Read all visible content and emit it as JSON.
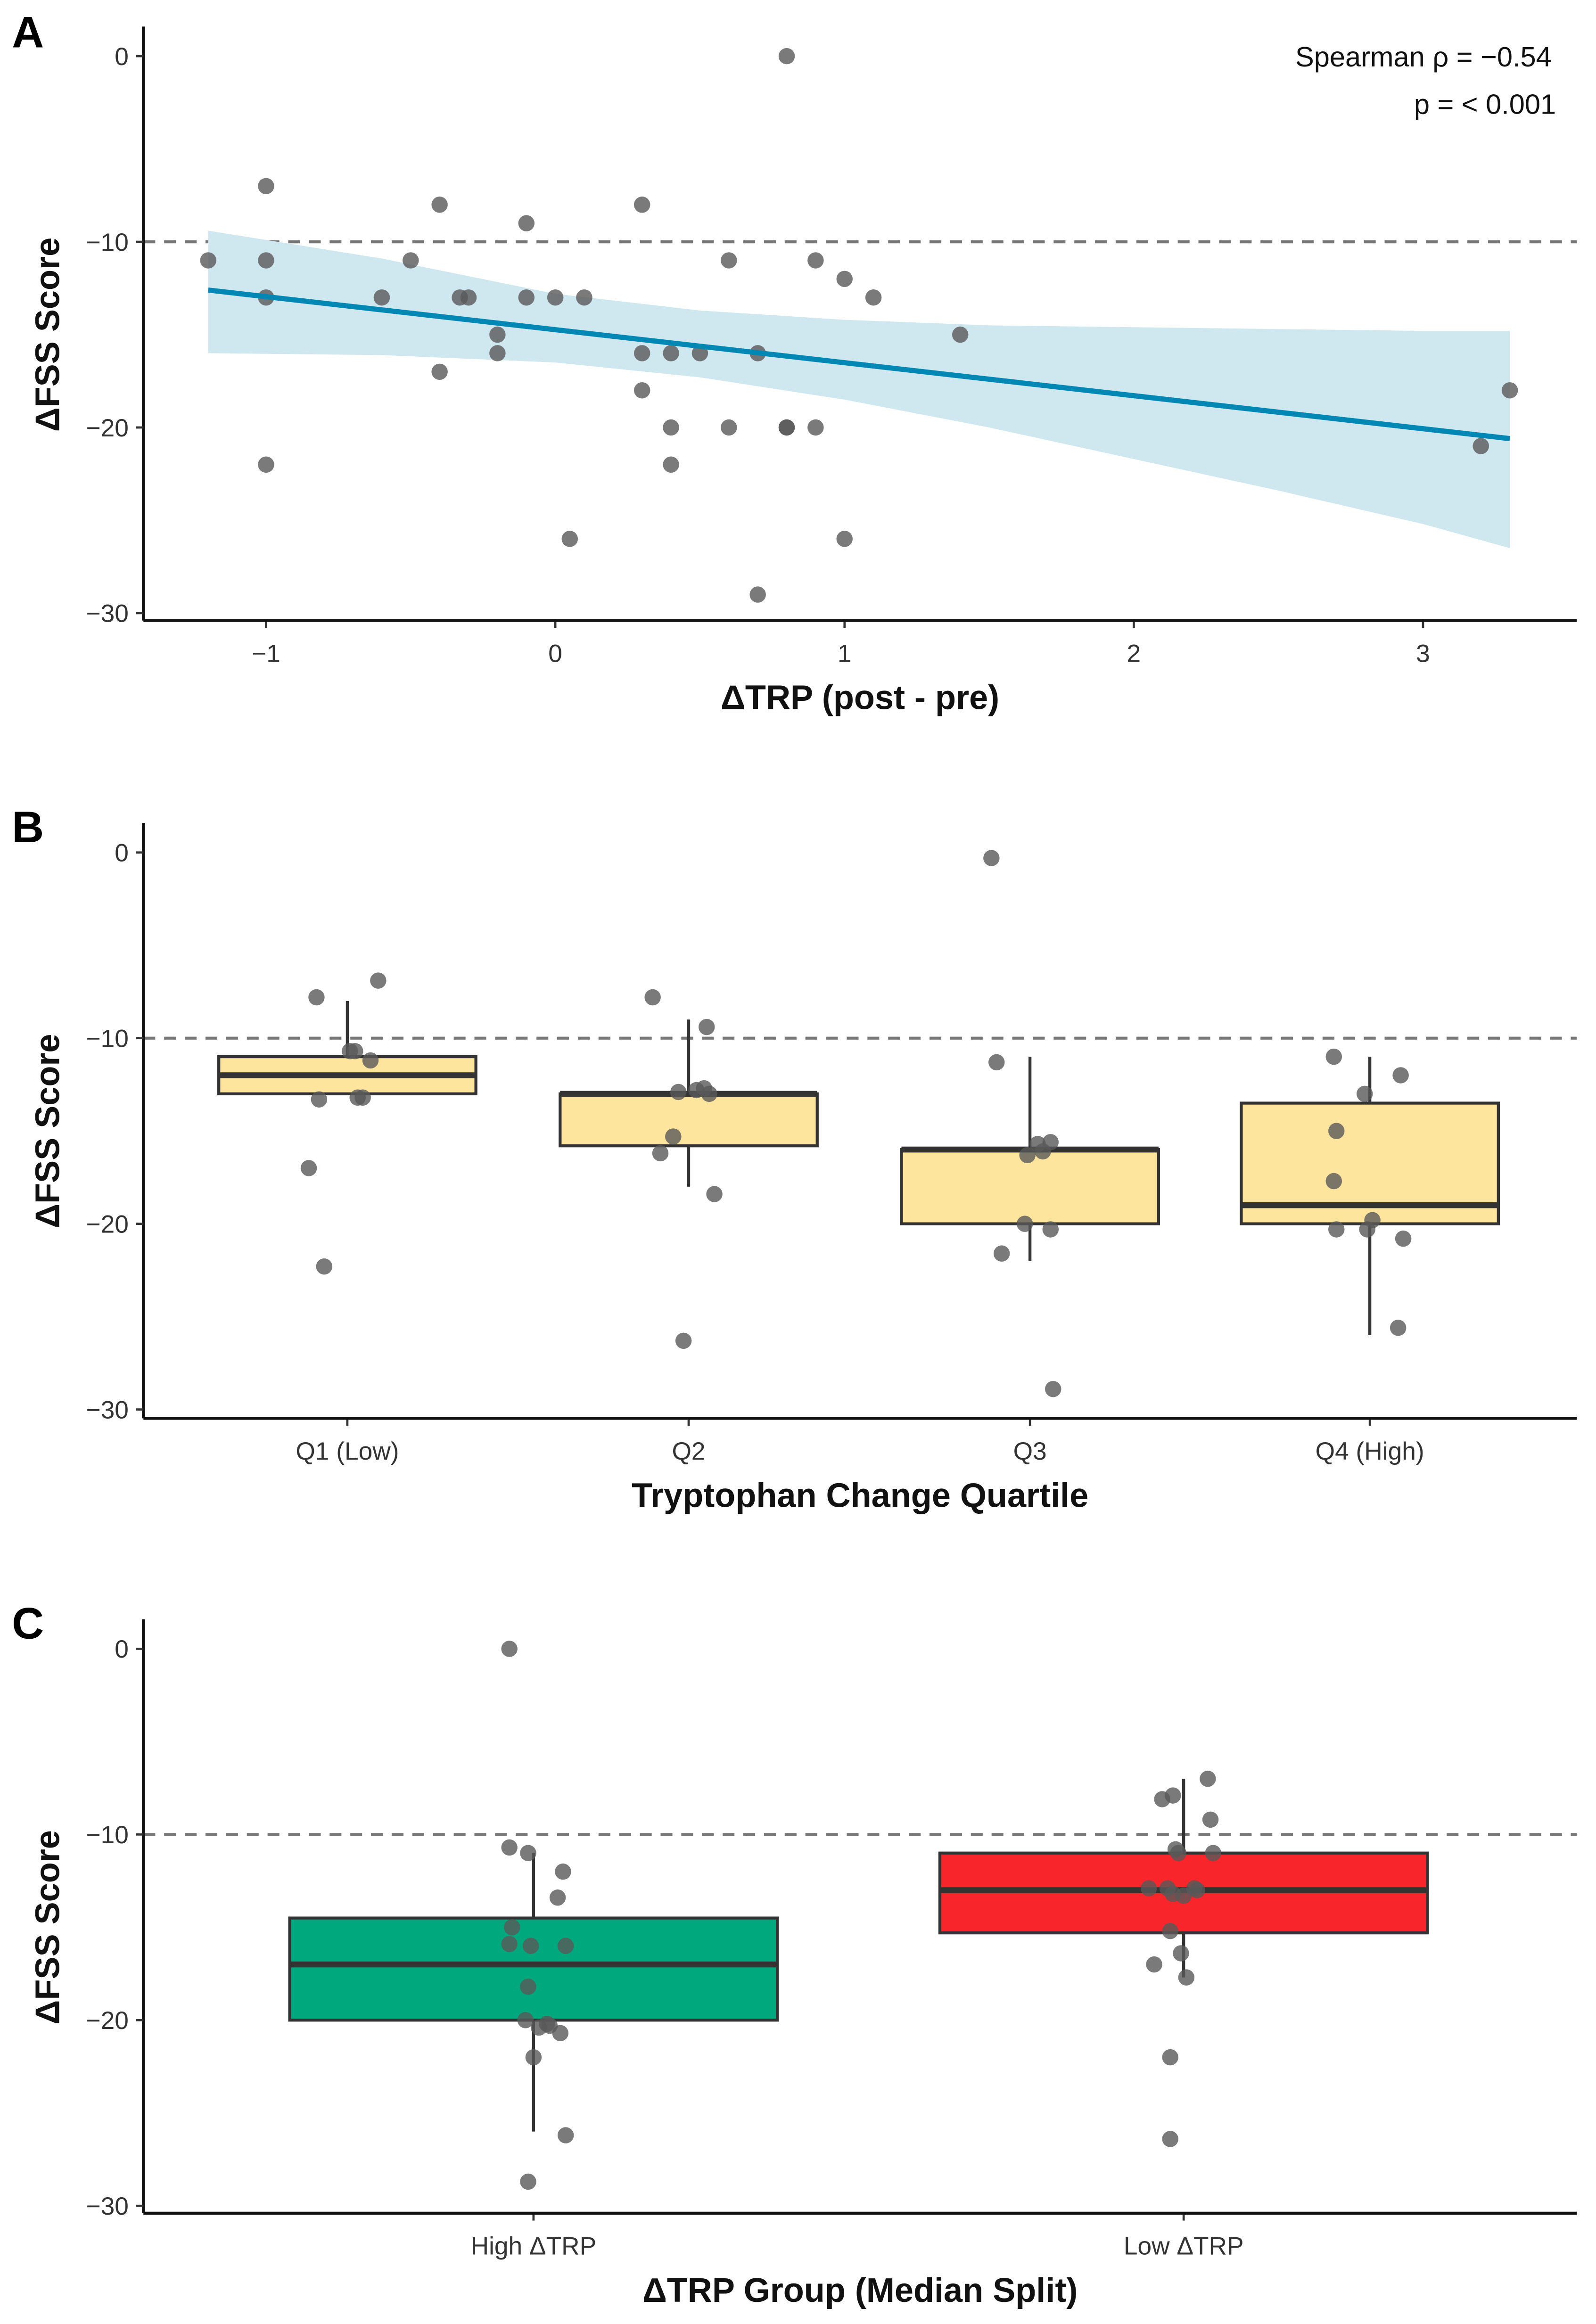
{
  "chart_data": [
    {
      "panel": "A",
      "type": "scatter",
      "xlabel": "ΔTRP (post - pre)",
      "ylabel": "ΔFSS Score",
      "xlim": [
        -1.45,
        3.5
      ],
      "ylim": [
        -30.5,
        1.5
      ],
      "xticks": [
        -1,
        0,
        1,
        2,
        3
      ],
      "xtick_labels": [
        "−1",
        "0",
        "1",
        "2",
        "3"
      ],
      "yticks": [
        0,
        -10,
        -20,
        -30
      ],
      "ytick_labels": [
        "0",
        "−10",
        "−20",
        "−30"
      ],
      "reference_line": -10,
      "annotations": [
        "Spearman ρ = −0.54",
        "p = < 0.001"
      ],
      "points": [
        [
          -1.2,
          -11
        ],
        [
          -1,
          -7
        ],
        [
          -1,
          -11
        ],
        [
          -1,
          -13
        ],
        [
          -1,
          -22
        ],
        [
          -0.6,
          -13
        ],
        [
          -0.5,
          -11
        ],
        [
          -0.4,
          -8
        ],
        [
          -0.4,
          -17
        ],
        [
          -0.33,
          -13
        ],
        [
          -0.3,
          -13
        ],
        [
          -0.2,
          -15
        ],
        [
          -0.2,
          -16
        ],
        [
          -0.1,
          -9
        ],
        [
          -0.1,
          -13
        ],
        [
          0,
          -13
        ],
        [
          0.05,
          -26
        ],
        [
          0.1,
          -13
        ],
        [
          0.3,
          -8
        ],
        [
          0.3,
          -16
        ],
        [
          0.3,
          -18
        ],
        [
          0.4,
          -16
        ],
        [
          0.4,
          -20
        ],
        [
          0.4,
          -22
        ],
        [
          0.5,
          -16
        ],
        [
          0.6,
          -11
        ],
        [
          0.6,
          -20
        ],
        [
          0.7,
          -16
        ],
        [
          0.7,
          -29
        ],
        [
          0.8,
          0
        ],
        [
          0.8,
          -20
        ],
        [
          0.8,
          -20
        ],
        [
          0.9,
          -11
        ],
        [
          0.9,
          -20
        ],
        [
          1,
          -12
        ],
        [
          1,
          -26
        ],
        [
          1.1,
          -13
        ],
        [
          1.4,
          -15
        ],
        [
          3.2,
          -21
        ],
        [
          3.3,
          -18
        ]
      ],
      "fit": {
        "x": [
          -1.2,
          3.3
        ],
        "y": [
          -12.6,
          -20.6
        ]
      },
      "ci": {
        "x": [
          -1.2,
          -0.6,
          0,
          0.5,
          1,
          1.5,
          2,
          2.5,
          3,
          3.3
        ],
        "lower": [
          -16,
          -16.1,
          -16.5,
          -17.3,
          -18.5,
          -20,
          -21.7,
          -23.4,
          -25.2,
          -26.5
        ],
        "upper": [
          -9.4,
          -10.9,
          -12.8,
          -13.7,
          -14.2,
          -14.5,
          -14.6,
          -14.7,
          -14.8,
          -14.8
        ]
      },
      "colors": {
        "line": "#0087b3",
        "ribbon": "#cfe7ee",
        "point": "#595959"
      }
    },
    {
      "panel": "B",
      "type": "box",
      "xlabel": "Tryptophan Change Quartile",
      "ylabel": "ΔFSS Score",
      "ylim": [
        -30.5,
        1.5
      ],
      "yticks": [
        0,
        -10,
        -20,
        -30
      ],
      "ytick_labels": [
        "0",
        "−10",
        "−20",
        "−30"
      ],
      "reference_line": -10,
      "categories": [
        "Q1 (Low)",
        "Q2",
        "Q3",
        "Q4 (High)"
      ],
      "box_color": "#fde59e",
      "boxes": [
        {
          "q1": -13,
          "median": -12,
          "q3": -11,
          "lo": -13,
          "hi": -8
        },
        {
          "q1": -15.8,
          "median": -13,
          "q3": -13,
          "lo": -18,
          "hi": -9
        },
        {
          "q1": -20,
          "median": -16,
          "q3": -16,
          "lo": -22,
          "hi": -11
        },
        {
          "q1": -20,
          "median": -19,
          "q3": -13.5,
          "lo": -26,
          "hi": -11
        }
      ],
      "points": [
        [
          [
            -0.12,
            -7.8
          ],
          [
            0.12,
            -6.9
          ],
          [
            0.01,
            -10.7
          ],
          [
            0.03,
            -10.7
          ],
          [
            0.09,
            -11.2
          ],
          [
            -0.11,
            -13.3
          ],
          [
            0.04,
            -13.2
          ],
          [
            0.06,
            -13.2
          ],
          [
            -0.15,
            -17
          ],
          [
            -0.09,
            -22.3
          ]
        ],
        [
          [
            -0.14,
            -7.8
          ],
          [
            0.07,
            -9.4
          ],
          [
            -0.04,
            -12.9
          ],
          [
            0.03,
            -12.8
          ],
          [
            0.06,
            -12.7
          ],
          [
            0.08,
            -13
          ],
          [
            -0.06,
            -15.3
          ],
          [
            -0.11,
            -16.2
          ],
          [
            0.1,
            -18.4
          ],
          [
            -0.02,
            -26.3
          ]
        ],
        [
          [
            -0.15,
            -0.3
          ],
          [
            -0.13,
            -11.3
          ],
          [
            0.03,
            -15.7
          ],
          [
            0.08,
            -15.6
          ],
          [
            -0.01,
            -16.3
          ],
          [
            0.05,
            -16.1
          ],
          [
            -0.02,
            -20
          ],
          [
            0.08,
            -20.3
          ],
          [
            -0.11,
            -21.6
          ],
          [
            0.09,
            -28.9
          ]
        ],
        [
          [
            -0.14,
            -11
          ],
          [
            0.12,
            -12
          ],
          [
            -0.02,
            -13
          ],
          [
            -0.13,
            -15
          ],
          [
            -0.14,
            -17.7
          ],
          [
            -0.13,
            -20.3
          ],
          [
            0.01,
            -19.8
          ],
          [
            -0.01,
            -20.3
          ],
          [
            0.13,
            -20.8
          ],
          [
            0.11,
            -25.6
          ]
        ]
      ],
      "point_color": "#595959"
    },
    {
      "panel": "C",
      "type": "box",
      "xlabel": "ΔTRP Group (Median Split)",
      "ylabel": "ΔFSS Score",
      "ylim": [
        -30.5,
        1.5
      ],
      "yticks": [
        0,
        -10,
        -20,
        -30
      ],
      "ytick_labels": [
        "0",
        "−10",
        "−20",
        "−30"
      ],
      "reference_line": -10,
      "categories": [
        "High ΔTRP",
        "Low ΔTRP"
      ],
      "box_colors": [
        "#00a87e",
        "#f8262a"
      ],
      "boxes": [
        {
          "q1": -20,
          "median": -17,
          "q3": -14.5,
          "lo": -26,
          "hi": -11
        },
        {
          "q1": -15.3,
          "median": -13,
          "q3": -11,
          "lo": -17.7,
          "hi": -7
        }
      ],
      "points": [
        [
          [
            -0.09,
            0
          ],
          [
            -0.09,
            -10.7
          ],
          [
            -0.02,
            -11
          ],
          [
            0.11,
            -12
          ],
          [
            0.09,
            -13.4
          ],
          [
            -0.08,
            -15
          ],
          [
            -0.09,
            -15.9
          ],
          [
            -0.01,
            -16
          ],
          [
            0.12,
            -16
          ],
          [
            -0.02,
            -18.2
          ],
          [
            -0.03,
            -20
          ],
          [
            0.05,
            -20.2
          ],
          [
            0.02,
            -20.4
          ],
          [
            0.06,
            -20.3
          ],
          [
            0.1,
            -20.7
          ],
          [
            0.0,
            -22
          ],
          [
            0.12,
            -26.2
          ],
          [
            -0.02,
            -28.7
          ]
        ],
        [
          [
            0.09,
            -7
          ],
          [
            -0.04,
            -7.9
          ],
          [
            -0.08,
            -8.1
          ],
          [
            0.1,
            -9.2
          ],
          [
            -0.03,
            -10.8
          ],
          [
            -0.02,
            -11
          ],
          [
            0.11,
            -11
          ],
          [
            -0.13,
            -12.9
          ],
          [
            -0.06,
            -12.9
          ],
          [
            0.05,
            -13
          ],
          [
            -0.04,
            -13.2
          ],
          [
            0.0,
            -13.3
          ],
          [
            0.04,
            -12.9
          ],
          [
            -0.05,
            -15.2
          ],
          [
            -0.01,
            -16.4
          ],
          [
            -0.11,
            -17
          ],
          [
            0.01,
            -17.7
          ],
          [
            -0.05,
            -22
          ],
          [
            -0.05,
            -26.4
          ]
        ]
      ],
      "point_color": "#595959"
    }
  ]
}
